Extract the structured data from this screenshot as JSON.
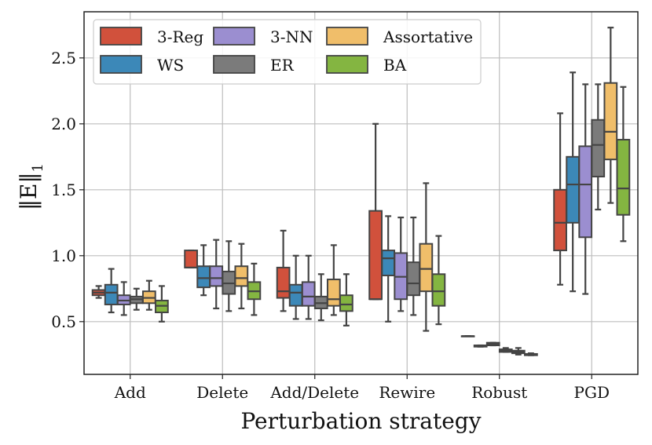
{
  "chart_data": {
    "type": "box",
    "title": "",
    "xlabel": "Perturbation strategy",
    "ylabel": "‖E‖",
    "ylabel_subscript": "1",
    "ylim": [
      0.1,
      2.85
    ],
    "yticks": [
      0.5,
      1.0,
      1.5,
      2.0,
      2.5
    ],
    "ytick_labels": [
      "0.5",
      "1.0",
      "1.5",
      "2.0",
      "2.5"
    ],
    "grid": true,
    "legend_position": "top-left",
    "categories": [
      "Add",
      "Delete",
      "Add/Delete",
      "Rewire",
      "Robust",
      "PGD"
    ],
    "series": [
      {
        "name": "3-Reg",
        "color": "#d1513c",
        "boxes": [
          {
            "min": 0.68,
            "q1": 0.7,
            "median": 0.72,
            "q3": 0.74,
            "max": 0.77
          },
          {
            "min": 0.91,
            "q1": 0.91,
            "median": 0.91,
            "q3": 1.04,
            "max": 1.04
          },
          {
            "min": 0.58,
            "q1": 0.68,
            "median": 0.73,
            "q3": 0.91,
            "max": 1.19
          },
          {
            "min": 0.67,
            "q1": 0.67,
            "median": 0.67,
            "q3": 1.34,
            "max": 2.0
          },
          {
            "min": 0.39,
            "q1": 0.39,
            "median": 0.39,
            "q3": 0.39,
            "max": 0.39
          },
          {
            "min": 0.78,
            "q1": 1.04,
            "median": 1.25,
            "q3": 1.5,
            "max": 2.08
          }
        ]
      },
      {
        "name": "WS",
        "color": "#3c88b8",
        "boxes": [
          {
            "min": 0.57,
            "q1": 0.63,
            "median": 0.72,
            "q3": 0.78,
            "max": 0.9
          },
          {
            "min": 0.7,
            "q1": 0.76,
            "median": 0.83,
            "q3": 0.92,
            "max": 1.08
          },
          {
            "min": 0.52,
            "q1": 0.62,
            "median": 0.72,
            "q3": 0.78,
            "max": 1.0
          },
          {
            "min": 0.5,
            "q1": 0.85,
            "median": 0.98,
            "q3": 1.04,
            "max": 1.3
          },
          {
            "min": 0.31,
            "q1": 0.31,
            "median": 0.315,
            "q3": 0.32,
            "max": 0.32
          },
          {
            "min": 0.73,
            "q1": 1.25,
            "median": 1.54,
            "q3": 1.75,
            "max": 2.39
          }
        ]
      },
      {
        "name": "3-NN",
        "color": "#9b8ed0",
        "boxes": [
          {
            "min": 0.55,
            "q1": 0.63,
            "median": 0.66,
            "q3": 0.7,
            "max": 0.8
          },
          {
            "min": 0.6,
            "q1": 0.77,
            "median": 0.83,
            "q3": 0.92,
            "max": 1.12
          },
          {
            "min": 0.52,
            "q1": 0.62,
            "median": 0.69,
            "q3": 0.8,
            "max": 1.0
          },
          {
            "min": 0.58,
            "q1": 0.67,
            "median": 0.84,
            "q3": 1.02,
            "max": 1.29
          },
          {
            "min": 0.32,
            "q1": 0.32,
            "median": 0.33,
            "q3": 0.34,
            "max": 0.34
          },
          {
            "min": 0.71,
            "q1": 1.14,
            "median": 1.54,
            "q3": 1.83,
            "max": 2.3
          }
        ]
      },
      {
        "name": "ER",
        "color": "#7b7b7b",
        "boxes": [
          {
            "min": 0.59,
            "q1": 0.64,
            "median": 0.67,
            "q3": 0.69,
            "max": 0.75
          },
          {
            "min": 0.58,
            "q1": 0.71,
            "median": 0.79,
            "q3": 0.88,
            "max": 1.11
          },
          {
            "min": 0.51,
            "q1": 0.6,
            "median": 0.64,
            "q3": 0.69,
            "max": 0.86
          },
          {
            "min": 0.55,
            "q1": 0.7,
            "median": 0.79,
            "q3": 0.95,
            "max": 1.29
          },
          {
            "min": 0.27,
            "q1": 0.27,
            "median": 0.28,
            "q3": 0.29,
            "max": 0.3
          },
          {
            "min": 1.35,
            "q1": 1.6,
            "median": 1.84,
            "q3": 2.03,
            "max": 2.3
          }
        ]
      },
      {
        "name": "Assortative",
        "color": "#f0be6a",
        "boxes": [
          {
            "min": 0.59,
            "q1": 0.64,
            "median": 0.68,
            "q3": 0.73,
            "max": 0.81
          },
          {
            "min": 0.6,
            "q1": 0.77,
            "median": 0.83,
            "q3": 0.92,
            "max": 1.09
          },
          {
            "min": 0.55,
            "q1": 0.62,
            "median": 0.67,
            "q3": 0.82,
            "max": 1.08
          },
          {
            "min": 0.43,
            "q1": 0.73,
            "median": 0.9,
            "q3": 1.09,
            "max": 1.55
          },
          {
            "min": 0.25,
            "q1": 0.26,
            "median": 0.27,
            "q3": 0.28,
            "max": 0.3
          },
          {
            "min": 1.4,
            "q1": 1.73,
            "median": 1.94,
            "q3": 2.31,
            "max": 2.73
          }
        ]
      },
      {
        "name": "BA",
        "color": "#84b541",
        "boxes": [
          {
            "min": 0.5,
            "q1": 0.57,
            "median": 0.62,
            "q3": 0.66,
            "max": 0.77
          },
          {
            "min": 0.55,
            "q1": 0.67,
            "median": 0.73,
            "q3": 0.8,
            "max": 0.94
          },
          {
            "min": 0.47,
            "q1": 0.58,
            "median": 0.63,
            "q3": 0.7,
            "max": 0.86
          },
          {
            "min": 0.48,
            "q1": 0.62,
            "median": 0.73,
            "q3": 0.86,
            "max": 1.15
          },
          {
            "min": 0.245,
            "q1": 0.245,
            "median": 0.25,
            "q3": 0.255,
            "max": 0.26
          },
          {
            "min": 1.11,
            "q1": 1.31,
            "median": 1.51,
            "q3": 1.88,
            "max": 2.28
          }
        ]
      }
    ]
  }
}
